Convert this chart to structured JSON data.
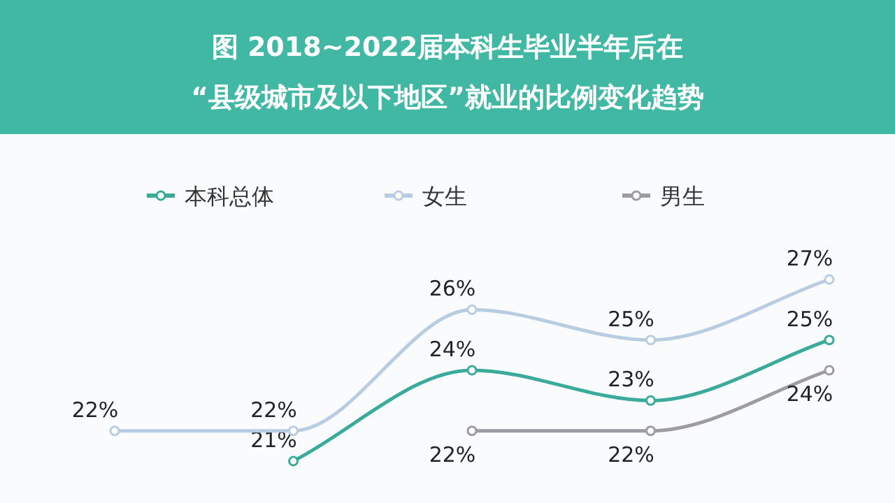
{
  "chart_data": {
    "type": "line",
    "title": "图  2018~2022届本科生毕业半年后在\n“县级城市及以下地区”就业的比例变化趋势",
    "categories": [
      null,
      null,
      null,
      null,
      null
    ],
    "series": [
      {
        "name": "本科总体",
        "color": "#3aab9b",
        "values": [
          null,
          21,
          24,
          23,
          25
        ],
        "value_labels": [
          null,
          "21%",
          "24%",
          "23%",
          "25%"
        ]
      },
      {
        "name": "女生",
        "color": "#b9cde2",
        "values": [
          22,
          22,
          26,
          25,
          27
        ],
        "value_labels": [
          "22%",
          "22%",
          "26%",
          "25%",
          "27%"
        ]
      },
      {
        "name": "男生",
        "color": "#9c9ca2",
        "values": [
          null,
          null,
          22,
          22,
          24
        ],
        "value_labels": [
          null,
          null,
          "22%",
          "22%",
          "24%"
        ]
      }
    ],
    "legend": "top",
    "marker": "circle"
  }
}
